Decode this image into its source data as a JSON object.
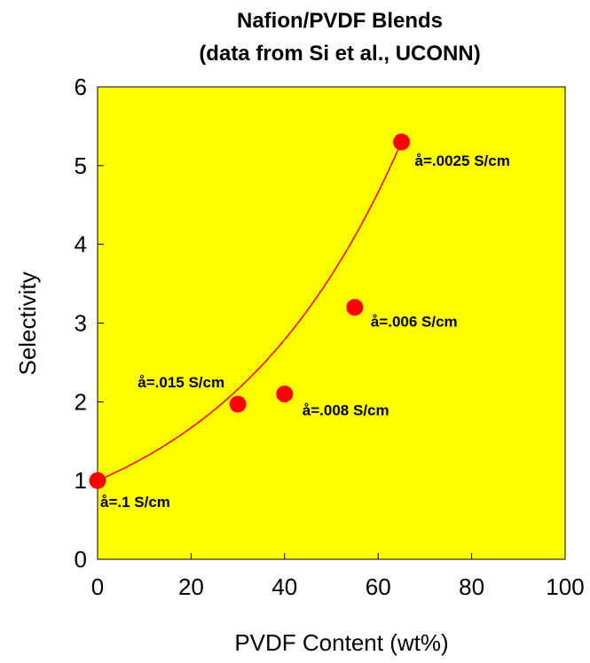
{
  "chart_data": {
    "type": "scatter",
    "title_line1": "Nafion/PVDF Blends",
    "title_line2": "(data from Si et al., UCONN)",
    "xlabel": "PVDF Content (wt%)",
    "ylabel": "Selectivity",
    "xlim": [
      0,
      100
    ],
    "ylim": [
      0,
      6
    ],
    "xticks": [
      0,
      20,
      40,
      60,
      80,
      100
    ],
    "yticks": [
      0,
      1,
      2,
      3,
      4,
      5,
      6
    ],
    "grid": false,
    "plot_background": "#ffff00",
    "marker_color": "#ff0000",
    "curve_color": "#ff0000",
    "series": [
      {
        "points": [
          {
            "x": 0,
            "y": 1.0,
            "label": "å=.1 S/cm"
          },
          {
            "x": 30,
            "y": 1.97,
            "label": "å=.015 S/cm"
          },
          {
            "x": 40,
            "y": 2.1,
            "label": "å=.008 S/cm"
          },
          {
            "x": 55,
            "y": 3.2,
            "label": "å=.006 S/cm"
          },
          {
            "x": 65,
            "y": 5.3,
            "label": "å=.0025 S/cm"
          }
        ]
      }
    ],
    "fit_curve": {
      "type": "exponential",
      "x_range": [
        0,
        65
      ]
    }
  }
}
